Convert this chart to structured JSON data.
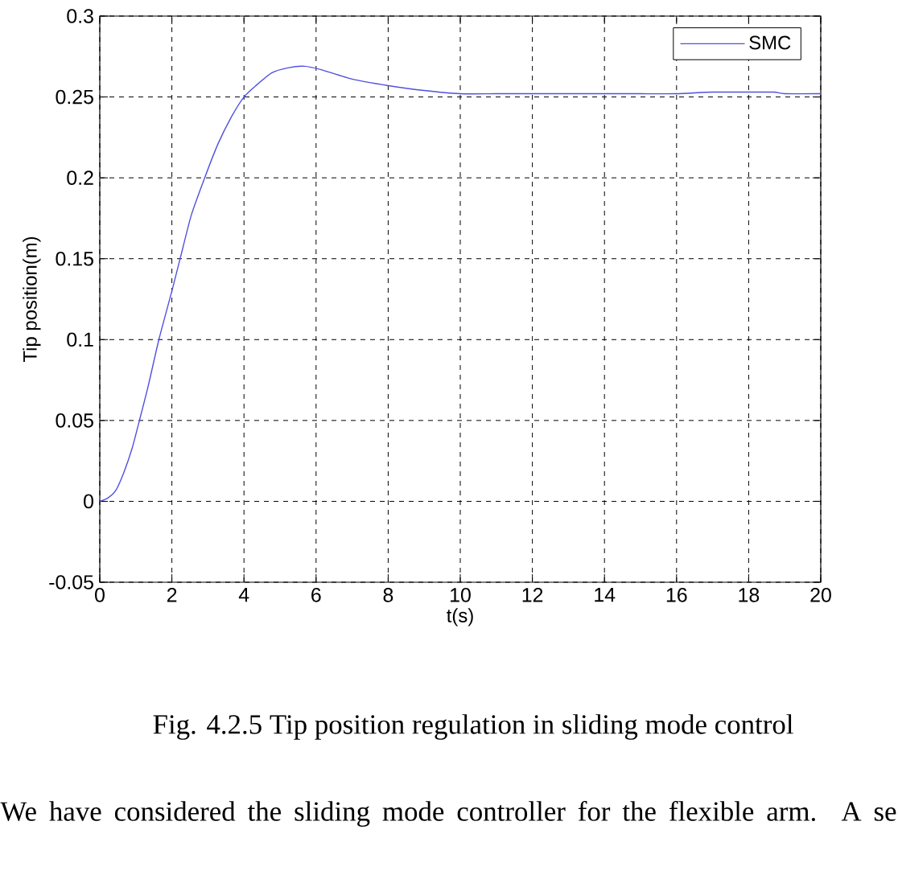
{
  "chart_data": {
    "type": "line",
    "xlabel": "t(s)",
    "ylabel": "Tip position(m)",
    "annotations": [
      "Fig. 4.2.5 Tip position regulation in sliding mode control",
      "We have considered the sliding mode controller for the flexible arm. A se"
    ],
    "x": [
      0,
      0.22,
      0.45,
      0.67,
      0.9,
      1.1,
      1.34,
      1.64,
      2.0,
      2.24,
      2.54,
      2.91,
      3.28,
      3.66,
      4.0,
      4.33,
      4.78,
      5.22,
      5.67,
      6.12,
      7.0,
      8.0,
      9.0,
      10,
      11,
      12,
      13,
      14,
      15,
      16,
      17,
      18,
      18.7,
      19,
      20
    ],
    "series": [
      {
        "name": "SMC",
        "color": "#5050e0",
        "values": [
          0,
          0.002,
          0.007,
          0.018,
          0.033,
          0.05,
          0.071,
          0.1,
          0.13,
          0.151,
          0.177,
          0.2,
          0.221,
          0.238,
          0.25,
          0.257,
          0.265,
          0.268,
          0.269,
          0.267,
          0.261,
          0.257,
          0.254,
          0.252,
          0.252,
          0.252,
          0.252,
          0.252,
          0.252,
          0.252,
          0.253,
          0.253,
          0.253,
          0.252,
          0.252
        ]
      }
    ],
    "xlim": [
      0,
      20
    ],
    "ylim": [
      -0.05,
      0.3
    ],
    "xticks": [
      0,
      2,
      4,
      6,
      8,
      10,
      12,
      14,
      16,
      18,
      20
    ],
    "yticks": [
      -0.05,
      0,
      0.05,
      0.1,
      0.15,
      0.2,
      0.25,
      0.3
    ],
    "grid": true,
    "legend": "top right",
    "line_style": "solid"
  }
}
